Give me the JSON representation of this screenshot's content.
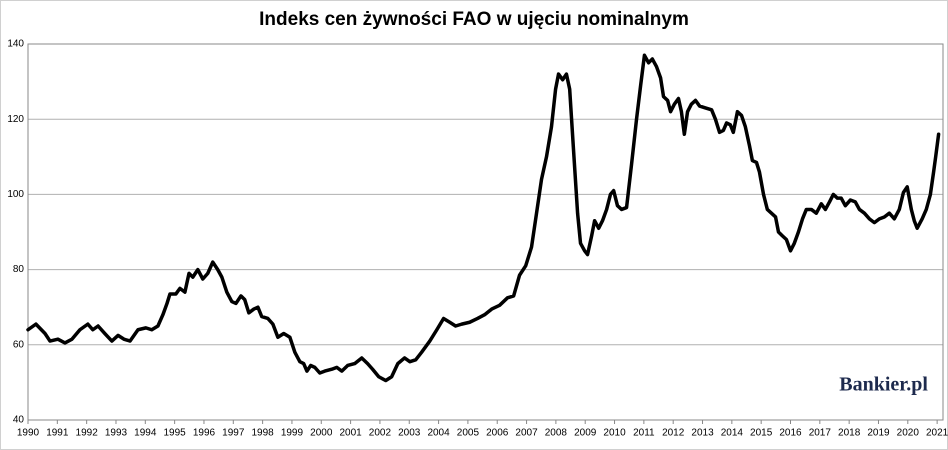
{
  "chart_data": {
    "type": "line",
    "title": "Indeks cen żywności FAO w ujęciu nominalnym",
    "watermark": "Bankier.pl",
    "color": "#000000",
    "grid": true,
    "xlim": [
      1990,
      2021.2
    ],
    "xticks": [
      1990,
      1991,
      1992,
      1993,
      1994,
      1995,
      1996,
      1997,
      1998,
      1999,
      2000,
      2001,
      2002,
      2003,
      2004,
      2005,
      2006,
      2007,
      2008,
      2009,
      2010,
      2011,
      2012,
      2013,
      2014,
      2015,
      2016,
      2017,
      2018,
      2019,
      2020,
      2021
    ],
    "ylim": [
      40,
      140
    ],
    "yticks": [
      40,
      60,
      80,
      100,
      120,
      140
    ],
    "x": [
      1990,
      1990.27,
      1990.58,
      1990.75,
      1991.02,
      1991.26,
      1991.5,
      1991.77,
      1992.04,
      1992.21,
      1992.39,
      1992.62,
      1992.86,
      1993.07,
      1993.27,
      1993.48,
      1993.75,
      1994.02,
      1994.22,
      1994.43,
      1994.6,
      1994.74,
      1994.84,
      1995.04,
      1995.18,
      1995.35,
      1995.49,
      1995.62,
      1995.79,
      1995.96,
      1996.13,
      1996.3,
      1996.47,
      1996.61,
      1996.78,
      1996.95,
      1997.09,
      1997.26,
      1997.39,
      1997.53,
      1997.7,
      1997.84,
      1997.97,
      1998.18,
      1998.35,
      1998.52,
      1998.72,
      1998.93,
      1999.1,
      1999.27,
      1999.4,
      1999.51,
      1999.64,
      1999.78,
      1999.95,
      2000.12,
      2000.36,
      2000.53,
      2000.7,
      2000.9,
      2001.14,
      2001.38,
      2001.58,
      2001.75,
      2001.96,
      2002.2,
      2002.4,
      2002.61,
      2002.84,
      2003.02,
      2003.22,
      2003.42,
      2003.7,
      2003.94,
      2004.17,
      2004.38,
      2004.58,
      2004.79,
      2005.06,
      2005.33,
      2005.57,
      2005.81,
      2006.08,
      2006.35,
      2006.56,
      2006.76,
      2006.97,
      2007.17,
      2007.34,
      2007.51,
      2007.68,
      2007.85,
      2007.99,
      2008.09,
      2008.23,
      2008.36,
      2008.47,
      2008.6,
      2008.74,
      2008.84,
      2008.98,
      2009.08,
      2009.22,
      2009.32,
      2009.46,
      2009.59,
      2009.73,
      2009.86,
      2009.97,
      2010.1,
      2010.24,
      2010.41,
      2010.58,
      2010.75,
      2010.89,
      2011.02,
      2011.16,
      2011.29,
      2011.43,
      2011.57,
      2011.67,
      2011.81,
      2011.91,
      2012.04,
      2012.18,
      2012.28,
      2012.38,
      2012.49,
      2012.62,
      2012.76,
      2012.9,
      2013.1,
      2013.31,
      2013.44,
      2013.58,
      2013.71,
      2013.82,
      2013.95,
      2014.05,
      2014.19,
      2014.33,
      2014.46,
      2014.6,
      2014.7,
      2014.84,
      2014.94,
      2015.08,
      2015.21,
      2015.35,
      2015.49,
      2015.59,
      2015.72,
      2015.86,
      2016,
      2016.13,
      2016.27,
      2016.41,
      2016.54,
      2016.71,
      2016.88,
      2017.05,
      2017.19,
      2017.33,
      2017.46,
      2017.6,
      2017.73,
      2017.87,
      2018.04,
      2018.21,
      2018.35,
      2018.52,
      2018.69,
      2018.86,
      2019.03,
      2019.2,
      2019.37,
      2019.54,
      2019.71,
      2019.85,
      2019.98,
      2020.12,
      2020.22,
      2020.32,
      2020.49,
      2020.63,
      2020.77,
      2020.88,
      2020.95,
      2021.05
    ],
    "values": [
      64,
      65.5,
      63,
      61,
      61.5,
      60.5,
      61.5,
      64,
      65.5,
      64,
      65,
      63,
      61,
      62.5,
      61.5,
      61,
      64,
      64.5,
      64,
      65,
      68,
      71,
      73.5,
      73.5,
      75,
      74,
      79,
      78,
      80,
      77.5,
      79,
      82,
      80,
      78,
      74,
      71.5,
      71,
      73,
      72,
      68.5,
      69.5,
      70,
      67.5,
      67,
      65.5,
      62,
      63,
      62,
      58,
      55.5,
      55,
      53,
      54.5,
      54,
      52.5,
      53,
      53.5,
      54,
      53,
      54.5,
      55,
      56.5,
      55,
      53.5,
      51.5,
      50.5,
      51.5,
      55,
      56.5,
      55.5,
      56,
      58,
      61,
      64,
      67,
      66,
      65,
      65.5,
      66,
      67,
      68,
      69.5,
      70.5,
      72.5,
      73,
      78.5,
      81,
      86,
      95,
      104,
      110,
      118,
      128,
      132,
      130.5,
      132,
      128,
      112,
      95,
      87,
      85,
      84,
      89,
      93,
      91,
      93,
      96,
      100,
      101,
      97,
      96,
      96.5,
      108,
      120,
      129,
      137,
      135,
      136,
      134,
      131,
      126,
      125,
      122,
      124,
      125.5,
      122,
      116,
      122,
      124,
      125,
      123.5,
      123,
      122.5,
      120,
      116.5,
      117,
      119,
      118.5,
      116.5,
      122,
      121,
      118,
      113,
      109,
      108.5,
      106,
      100,
      96,
      95,
      94,
      90,
      89,
      88,
      85,
      87,
      90,
      93.5,
      96,
      96,
      95,
      97.5,
      96,
      98,
      100,
      99,
      99,
      97,
      98.5,
      98,
      96,
      95,
      93.5,
      92.5,
      93.5,
      94,
      95,
      93.5,
      96,
      100.5,
      102,
      96,
      93,
      91,
      93.5,
      96,
      100,
      106,
      110,
      116
    ]
  }
}
